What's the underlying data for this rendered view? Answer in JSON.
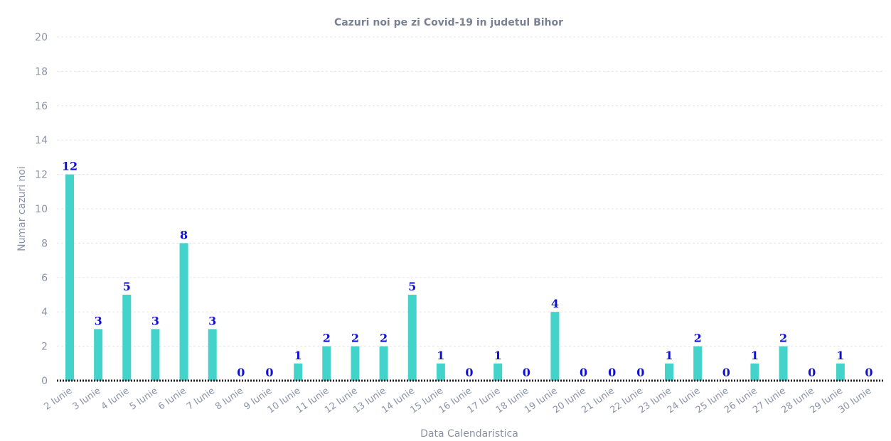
{
  "chart_data": {
    "type": "bar",
    "title": "Cazuri noi pe zi Covid-19 in judetul Bihor",
    "xlabel": "Data Calendaristica",
    "ylabel": "Numar cazuri noi",
    "ylim": [
      0,
      20
    ],
    "yticks": [
      0,
      2,
      4,
      6,
      8,
      10,
      12,
      14,
      16,
      18,
      20
    ],
    "grid": true,
    "categories": [
      "2 Iunie",
      "3 Iunie",
      "4 Iunie",
      "5 Iunie",
      "6 Iunie",
      "7 Iunie",
      "8 Iunie",
      "9 Iunie",
      "10 Iunie",
      "11 Iunie",
      "12 Iunie",
      "13 Iunie",
      "14 Iunie",
      "15 Iunie",
      "16 Iunie",
      "17 Iunie",
      "18 Iunie",
      "19 Iunie",
      "20 Iunie",
      "21 Iunie",
      "22 Iunie",
      "23 Iunie",
      "24 Iunie",
      "25 Iunie",
      "26 Iunie",
      "27 Iunie",
      "28 Iunie",
      "29 Iunie",
      "30 Iunie"
    ],
    "values": [
      12,
      3,
      5,
      3,
      8,
      3,
      0,
      0,
      1,
      2,
      2,
      2,
      5,
      1,
      0,
      1,
      0,
      4,
      0,
      0,
      0,
      1,
      2,
      0,
      1,
      2,
      0,
      1,
      0
    ],
    "bar_color": "#43d3cb",
    "label_color": "#1010d0"
  }
}
